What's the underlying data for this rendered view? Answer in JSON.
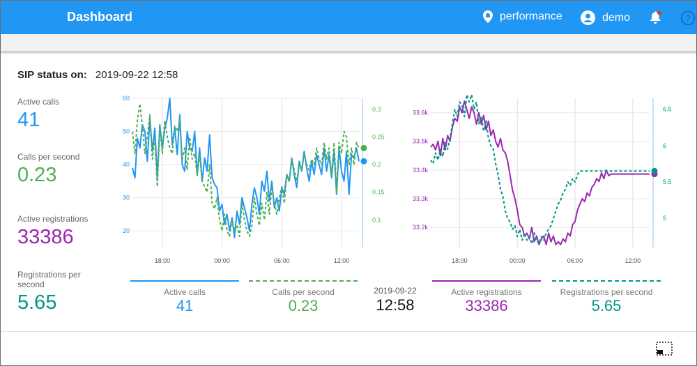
{
  "header": {
    "title": "Dashboard",
    "mode_label": "performance",
    "user_label": "demo"
  },
  "sip": {
    "label": "SIP status on:",
    "timestamp": "2019-09-22 12:58"
  },
  "stats": [
    {
      "label": "Active calls",
      "value": "41",
      "color": "#2196f3"
    },
    {
      "label": "Calls per second",
      "value": "0.23",
      "color": "#4caf50"
    },
    {
      "label": "Active registrations",
      "value": "33386",
      "color": "#9c27b0"
    },
    {
      "label": "Registrations per second",
      "value": "5.65",
      "color": "#009688"
    }
  ],
  "legend": [
    {
      "label": "Active calls",
      "value": "41",
      "color": "#2196f3",
      "dashed": false
    },
    {
      "label": "Calls per second",
      "value": "0.23",
      "color": "#4caf50",
      "dashed": true
    },
    {
      "label": "Active registrations",
      "value": "33386",
      "color": "#9c27b0",
      "dashed": false
    },
    {
      "label": "Registrations per second",
      "value": "5.65",
      "color": "#009688",
      "dashed": true
    }
  ],
  "current_time": {
    "date": "2019-09-22",
    "time": "12:58"
  },
  "chart_data": [
    {
      "type": "line",
      "x_ticks": [
        "18:00",
        "00:00",
        "06:00",
        "12:00"
      ],
      "x": [
        0,
        0.25,
        0.5,
        0.75,
        1,
        1.25,
        1.5,
        1.75,
        2,
        2.25,
        2.5,
        2.75,
        3,
        3.25,
        3.5,
        3.75,
        4,
        4.25,
        4.5,
        4.75,
        5,
        5.25,
        5.5,
        5.75,
        6,
        6.25,
        6.5,
        6.75,
        7,
        7.25,
        7.5,
        7.75,
        8,
        8.25,
        8.5,
        8.75,
        9,
        9.25,
        9.5,
        9.75,
        10,
        10.25,
        10.5,
        10.75,
        11,
        11.25,
        11.5,
        11.75,
        12,
        12.25,
        12.5,
        12.75,
        13,
        13.25,
        13.5,
        13.75,
        14,
        14.25,
        14.5,
        14.75,
        15,
        15.25,
        15.5,
        15.75,
        16,
        16.25,
        16.5,
        16.75,
        17,
        17.25,
        17.5,
        17.75,
        18,
        18.25,
        18.5,
        18.75,
        19,
        19.25,
        19.5,
        19.75,
        20,
        20.25,
        20.5,
        20.75,
        21,
        21.25,
        21.5,
        21.75,
        22,
        22.25,
        22.5,
        22.75
      ],
      "x_tick_positions": [
        3,
        9,
        15,
        21
      ],
      "y_left": {
        "ticks": [
          20,
          30,
          40,
          50,
          60
        ],
        "range": [
          15,
          60
        ],
        "color": "#2196f3"
      },
      "y_right": {
        "ticks": [
          0.1,
          0.15,
          0.2,
          0.25,
          0.3
        ],
        "range": [
          0.05,
          0.32
        ],
        "color": "#4caf50"
      },
      "series": [
        {
          "name": "Active calls",
          "axis": "left",
          "dashed": false,
          "color": "#2196f3",
          "values": [
            39,
            36,
            48,
            45,
            52,
            50,
            41,
            54,
            44,
            51,
            36,
            52,
            45,
            51,
            54,
            60,
            46,
            51,
            43,
            55,
            40,
            38,
            50,
            45,
            44,
            50,
            37,
            45,
            35,
            42,
            38,
            49,
            36,
            34,
            33,
            26,
            28,
            22,
            25,
            20,
            24,
            18,
            26,
            22,
            30,
            27,
            24,
            20,
            28,
            33,
            30,
            25,
            35,
            32,
            38,
            29,
            35,
            27,
            30,
            26,
            33,
            31,
            37,
            35,
            42,
            37,
            33,
            41,
            38,
            44,
            39,
            35,
            41,
            37,
            43,
            40,
            37,
            45,
            38,
            43,
            36,
            44,
            31,
            45,
            38,
            35,
            44,
            31,
            43,
            42,
            45,
            41
          ]
        },
        {
          "name": "Calls per second",
          "axis": "right",
          "dashed": true,
          "color": "#4caf50",
          "values": [
            0.26,
            0.22,
            0.28,
            0.31,
            0.27,
            0.22,
            0.25,
            0.29,
            0.21,
            0.25,
            0.16,
            0.27,
            0.22,
            0.28,
            0.25,
            0.23,
            0.22,
            0.27,
            0.26,
            0.28,
            0.21,
            0.23,
            0.19,
            0.25,
            0.21,
            0.22,
            0.18,
            0.22,
            0.17,
            0.16,
            0.15,
            0.2,
            0.13,
            0.12,
            0.14,
            0.1,
            0.08,
            0.11,
            0.08,
            0.07,
            0.1,
            0.08,
            0.09,
            0.07,
            0.13,
            0.1,
            0.08,
            0.07,
            0.09,
            0.14,
            0.11,
            0.09,
            0.13,
            0.1,
            0.15,
            0.11,
            0.16,
            0.13,
            0.11,
            0.14,
            0.16,
            0.13,
            0.18,
            0.17,
            0.21,
            0.19,
            0.17,
            0.2,
            0.19,
            0.22,
            0.2,
            0.19,
            0.21,
            0.2,
            0.23,
            0.21,
            0.2,
            0.24,
            0.21,
            0.23,
            0.18,
            0.24,
            0.15,
            0.24,
            0.22,
            0.26,
            0.25,
            0.2,
            0.23,
            0.2,
            0.24,
            0.23
          ]
        }
      ]
    },
    {
      "type": "line",
      "x_ticks": [
        "18:00",
        "00:00",
        "06:00",
        "12:00"
      ],
      "x": [
        0,
        0.25,
        0.5,
        0.75,
        1,
        1.25,
        1.5,
        1.75,
        2,
        2.25,
        2.5,
        2.75,
        3,
        3.25,
        3.5,
        3.75,
        4,
        4.25,
        4.5,
        4.75,
        5,
        5.25,
        5.5,
        5.75,
        6,
        6.25,
        6.5,
        6.75,
        7,
        7.25,
        7.5,
        7.75,
        8,
        8.25,
        8.5,
        8.75,
        9,
        9.25,
        9.5,
        9.75,
        10,
        10.25,
        10.5,
        10.75,
        11,
        11.25,
        11.5,
        11.75,
        12,
        12.25,
        12.5,
        12.75,
        13,
        13.25,
        13.5,
        13.75,
        14,
        14.25,
        14.5,
        14.75,
        15,
        15.25,
        15.5,
        15.75,
        16,
        16.25,
        16.5,
        16.75,
        17,
        17.25,
        17.5,
        17.75,
        18,
        18.25,
        18.5,
        18.75,
        19,
        19.25,
        19.5,
        19.75,
        20,
        20.25,
        20.5,
        20.75,
        21,
        21.25,
        21.5,
        21.75,
        22,
        22.25,
        22.5,
        22.75
      ],
      "x_tick_positions": [
        3,
        9,
        15,
        21
      ],
      "y_left": {
        "ticks": [
          "33.2k",
          "33.3k",
          "33.4k",
          "33.5k",
          "33.6k"
        ],
        "tick_values": [
          33200,
          33300,
          33400,
          33500,
          33600
        ],
        "range": [
          33130,
          33650
        ],
        "color": "#9c27b0"
      },
      "y_right": {
        "ticks": [
          5,
          5.5,
          6,
          6.5
        ],
        "tick_values": [
          5,
          5.5,
          6,
          6.5
        ],
        "range": [
          4.6,
          6.65
        ],
        "color": "#009688"
      },
      "series": [
        {
          "name": "Active registrations",
          "axis": "left",
          "dashed": false,
          "color": "#9c27b0",
          "values": [
            33480,
            33490,
            33470,
            33500,
            33450,
            33510,
            33470,
            33520,
            33500,
            33550,
            33580,
            33570,
            33620,
            33600,
            33640,
            33610,
            33580,
            33620,
            33600,
            33560,
            33600,
            33560,
            33590,
            33540,
            33570,
            33520,
            33540,
            33500,
            33480,
            33510,
            33470,
            33460,
            33430,
            33380,
            33330,
            33300,
            33260,
            33210,
            33200,
            33170,
            33180,
            33160,
            33200,
            33150,
            33170,
            33140,
            33160,
            33170,
            33140,
            33180,
            33150,
            33170,
            33140,
            33150,
            33140,
            33160,
            33150,
            33180,
            33170,
            33210,
            33220,
            33260,
            33280,
            33300,
            33290,
            33320,
            33310,
            33340,
            33350,
            33370,
            33360,
            33390,
            33370,
            33400,
            33380,
            33386,
            33386,
            33386,
            33386,
            33386,
            33386,
            33386,
            33386,
            33386,
            33386,
            33386,
            33386,
            33386,
            33386,
            33386,
            33386,
            33386
          ]
        },
        {
          "name": "Registrations per second",
          "axis": "right",
          "dashed": true,
          "color": "#009688",
          "values": [
            5.8,
            5.75,
            5.9,
            5.8,
            5.95,
            5.85,
            6.05,
            5.95,
            6.1,
            6.3,
            6.5,
            6.4,
            6.6,
            6.55,
            6.4,
            6.7,
            6.6,
            6.7,
            6.5,
            6.6,
            6.3,
            6.4,
            6.2,
            6.35,
            6.1,
            6.0,
            5.95,
            5.75,
            5.6,
            5.4,
            5.3,
            5.1,
            5.0,
            4.95,
            4.85,
            4.9,
            4.75,
            4.85,
            4.7,
            4.8,
            4.7,
            4.75,
            4.65,
            4.8,
            4.7,
            4.65,
            4.75,
            4.7,
            4.8,
            4.85,
            4.9,
            5.0,
            5.1,
            5.2,
            5.25,
            5.35,
            5.4,
            5.5,
            5.45,
            5.55,
            5.5,
            5.6,
            5.65,
            5.65,
            5.65,
            5.65,
            5.65,
            5.65,
            5.65,
            5.65,
            5.65,
            5.65,
            5.65,
            5.65,
            5.65,
            5.65,
            5.65,
            5.65,
            5.65,
            5.65,
            5.65,
            5.65,
            5.65,
            5.65,
            5.65,
            5.65,
            5.65,
            5.65,
            5.65,
            5.65,
            5.65,
            5.65
          ]
        }
      ]
    }
  ]
}
